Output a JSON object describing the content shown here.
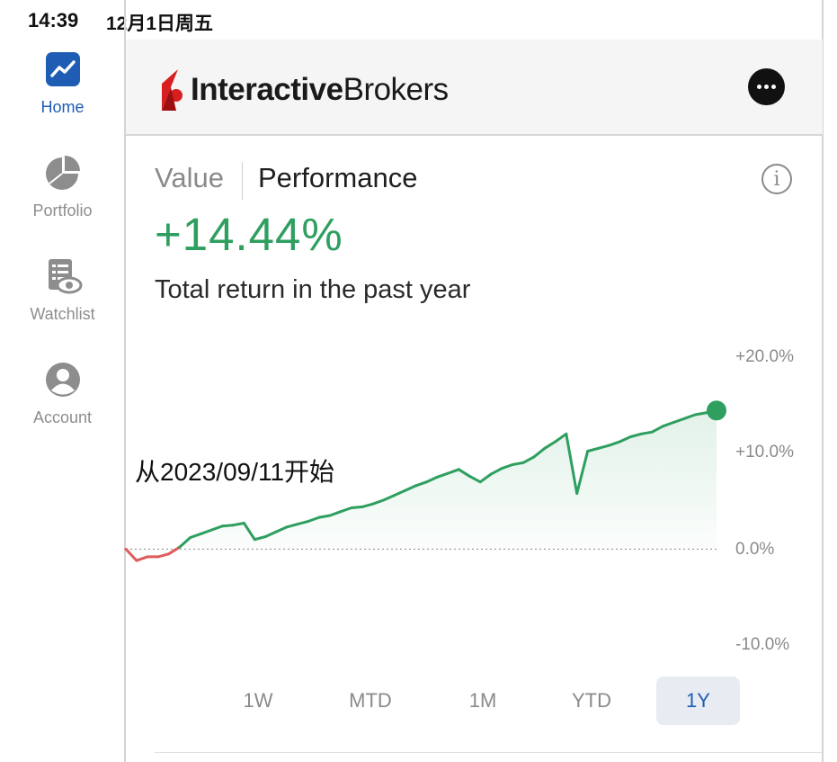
{
  "status_bar": {
    "time": "14:39",
    "date": "12月1日周五"
  },
  "sidebar": {
    "items": [
      {
        "label": "Home",
        "icon": "chart-line-icon",
        "active": true
      },
      {
        "label": "Portfolio",
        "icon": "pie-chart-icon",
        "active": false
      },
      {
        "label": "Watchlist",
        "icon": "watchlist-icon",
        "active": false
      },
      {
        "label": "Account",
        "icon": "user-icon",
        "active": false
      }
    ]
  },
  "header": {
    "brand_bold": "Interactive",
    "brand_regular": "Brokers",
    "more_icon": "more-icon"
  },
  "tabs": {
    "value_label": "Value",
    "performance_label": "Performance",
    "active": "Performance"
  },
  "summary": {
    "return_value": "+14.44%",
    "description": "Total return in the past year"
  },
  "annotation": "从2023/09/11开始",
  "periods": [
    "1W",
    "MTD",
    "1M",
    "YTD",
    "1Y"
  ],
  "selected_period": "1Y",
  "colors": {
    "positive": "#2e9f5f",
    "negative": "#e05c5c",
    "accent": "#1f5db4",
    "brand_red": "#d81e1e"
  },
  "chart_data": {
    "type": "line",
    "ylim": [
      -10,
      20
    ],
    "yticks": [
      "+20.0%",
      "+10.0%",
      "0.0%",
      "-10.0%"
    ],
    "baseline": 0,
    "series": [
      {
        "values": [
          0.0,
          -1.2,
          -0.8,
          -0.8,
          -0.5,
          0.2,
          1.2,
          1.6,
          2.0,
          2.4,
          2.5,
          2.7,
          1.0,
          1.3,
          1.8,
          2.3,
          2.6,
          2.9,
          3.3,
          3.5,
          3.9,
          4.3,
          4.4,
          4.7,
          5.1,
          5.6,
          6.1,
          6.6,
          7.0,
          7.5,
          7.9,
          8.3,
          7.6,
          7.0,
          7.8,
          8.4,
          8.8,
          9.0,
          9.6,
          10.5,
          11.2,
          12.0,
          5.8,
          10.2,
          10.5,
          10.8,
          11.2,
          11.7,
          12.0,
          12.2,
          12.8,
          13.2,
          13.6,
          14.0,
          14.2,
          14.44
        ]
      }
    ],
    "last_value": 14.44
  }
}
